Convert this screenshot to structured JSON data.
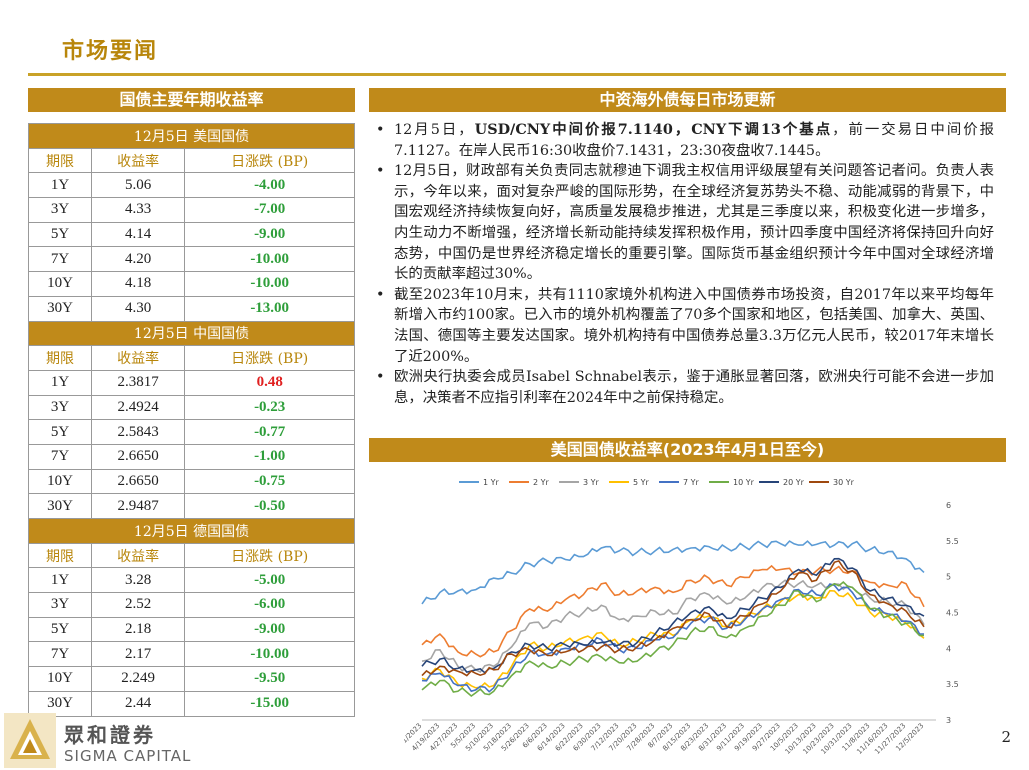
{
  "page": {
    "title": "市场要闻",
    "number": "2"
  },
  "left_section": {
    "title": "国债主要年期收益率",
    "headers": {
      "term": "期限",
      "yield": "收益率",
      "change": "日涨跌 (BP)"
    },
    "groups": [
      {
        "title": "12月5日  美国国债",
        "rows": [
          {
            "term": "1Y",
            "yield": "5.06",
            "change": "-4.00"
          },
          {
            "term": "3Y",
            "yield": "4.33",
            "change": "-7.00"
          },
          {
            "term": "5Y",
            "yield": "4.14",
            "change": "-9.00"
          },
          {
            "term": "7Y",
            "yield": "4.20",
            "change": "-10.00"
          },
          {
            "term": "10Y",
            "yield": "4.18",
            "change": "-10.00"
          },
          {
            "term": "30Y",
            "yield": "4.30",
            "change": "-13.00"
          }
        ]
      },
      {
        "title": "12月5日  中国国债",
        "rows": [
          {
            "term": "1Y",
            "yield": "2.3817",
            "change": "0.48"
          },
          {
            "term": "3Y",
            "yield": "2.4924",
            "change": "-0.23"
          },
          {
            "term": "5Y",
            "yield": "2.5843",
            "change": "-0.77"
          },
          {
            "term": "7Y",
            "yield": "2.6650",
            "change": "-1.00"
          },
          {
            "term": "10Y",
            "yield": "2.6650",
            "change": "-0.75"
          },
          {
            "term": "30Y",
            "yield": "2.9487",
            "change": "-0.50"
          }
        ]
      },
      {
        "title": "12月5日  德国国债",
        "rows": [
          {
            "term": "1Y",
            "yield": "3.28",
            "change": "-5.00"
          },
          {
            "term": "3Y",
            "yield": "2.52",
            "change": "-6.00"
          },
          {
            "term": "5Y",
            "yield": "2.18",
            "change": "-9.00"
          },
          {
            "term": "7Y",
            "yield": "2.17",
            "change": "-10.00"
          },
          {
            "term": "10Y",
            "yield": "2.249",
            "change": "-9.50"
          },
          {
            "term": "30Y",
            "yield": "2.44",
            "change": "-15.00"
          }
        ]
      }
    ]
  },
  "right_section": {
    "title": "中资海外债每日市场更新",
    "news": [
      {
        "pre": "12月5日，",
        "bold": "USD/CNY中间价报7.1140，CNY下调13个基点",
        "post": "，前一交易日中间价报7.1127。在岸人民币16:30收盘价7.1431，23:30夜盘收7.1445。"
      },
      {
        "pre": "12月5日，财政部有关负责同志就穆迪下调我主权信用评级展望有关问题答记者问。负责人表示，今年以来，面对复杂严峻的国际形势，在全球经济复苏势头不稳、动能减弱的背景下，中国宏观经济持续恢复向好，高质量发展稳步推进，尤其是三季度以来，积极变化进一步增多，内生动力不断增强，经济增长新动能持续发挥积极作用，预计四季度中国经济将保持回升向好态势，中国仍是世界经济稳定增长的重要引擎。国际货币基金组织预计今年中国对全球经济增长的贡献率超过30%。",
        "bold": "",
        "post": ""
      },
      {
        "pre": "截至2023年10月末，共有1110家境外机构进入中国债券市场投资，自2017年以来平均每年新增入市约100家。已入市的境外机构覆盖了70多个国家和地区，包括美国、加拿大、英国、法国、德国等主要发达国家。境外机构持有中国债券总量3.3万亿元人民币，较2017年末增长了近200%。",
        "bold": "",
        "post": ""
      },
      {
        "pre": "欧洲央行执委会成员Isabel Schnabel表示，鉴于通胀显著回落，欧洲央行可能不会进一步加息，决策者不应指引利率在2024年中之前保持稳定。",
        "bold": "",
        "post": ""
      }
    ],
    "chart_title": "美国国债收益率(2023年4月1日至今)"
  },
  "logo": {
    "cn": "眾和證券",
    "en": "SIGMA CAPITAL"
  },
  "chart_data": {
    "type": "line",
    "title": "",
    "ylim": [
      3,
      6
    ],
    "yticks": [
      "3",
      "3.5",
      "4",
      "4.5",
      "5",
      "5.5",
      "6"
    ],
    "y_axis_side": "right",
    "grid": false,
    "legend": "top",
    "categories": [
      "4/11/2023",
      "4/19/2023",
      "4/27/2023",
      "5/5/2023",
      "5/10/2023",
      "5/18/2023",
      "5/26/2023",
      "6/6/2023",
      "6/14/2023",
      "6/22/2023",
      "6/30/2023",
      "7/12/2023",
      "7/20/2023",
      "7/28/2023",
      "8/7/2023",
      "8/15/2023",
      "8/23/2023",
      "8/31/2023",
      "9/11/2023",
      "9/19/2023",
      "9/27/2023",
      "10/5/2023",
      "10/13/2023",
      "10/23/2023",
      "10/31/2023",
      "11/8/2023",
      "11/16/2023",
      "11/27/2023",
      "12/5/2023"
    ],
    "series": [
      {
        "name": "1 Yr",
        "color": "#5B9BD5",
        "values": [
          4.62,
          4.78,
          4.8,
          4.82,
          4.98,
          5.05,
          5.18,
          5.22,
          5.24,
          5.28,
          5.4,
          5.36,
          5.34,
          5.36,
          5.38,
          5.4,
          5.42,
          5.4,
          5.42,
          5.45,
          5.46,
          5.44,
          5.45,
          5.44,
          5.46,
          5.38,
          5.35,
          5.25,
          5.06
        ]
      },
      {
        "name": "2 Yr",
        "color": "#ED7D31",
        "values": [
          4.05,
          4.2,
          3.95,
          3.92,
          3.95,
          4.25,
          4.55,
          4.52,
          4.68,
          4.75,
          4.9,
          4.75,
          4.8,
          4.85,
          4.78,
          4.95,
          4.98,
          4.88,
          4.99,
          5.1,
          5.1,
          5.05,
          5.08,
          5.1,
          5.08,
          4.92,
          4.88,
          4.9,
          4.58
        ]
      },
      {
        "name": "3 Yr",
        "color": "#A5A5A5",
        "values": [
          3.82,
          3.98,
          3.75,
          3.7,
          3.75,
          4.02,
          4.35,
          4.3,
          4.45,
          4.5,
          4.6,
          4.4,
          4.45,
          4.52,
          4.48,
          4.7,
          4.75,
          4.62,
          4.7,
          4.85,
          4.9,
          4.9,
          4.88,
          4.9,
          4.85,
          4.7,
          4.65,
          4.6,
          4.33
        ]
      },
      {
        "name": "5 Yr",
        "color": "#FFC000",
        "values": [
          3.58,
          3.7,
          3.5,
          3.45,
          3.48,
          3.75,
          4.05,
          4.0,
          4.1,
          4.15,
          4.22,
          4.05,
          4.1,
          4.2,
          4.18,
          4.4,
          4.45,
          4.3,
          4.42,
          4.55,
          4.65,
          4.75,
          4.7,
          4.8,
          4.7,
          4.5,
          4.45,
          4.35,
          4.14
        ]
      },
      {
        "name": "7 Yr",
        "color": "#4472C4",
        "values": [
          3.55,
          3.65,
          3.48,
          3.42,
          3.45,
          3.7,
          3.95,
          3.92,
          4.0,
          4.05,
          4.12,
          3.98,
          4.0,
          4.12,
          4.15,
          4.35,
          4.42,
          4.28,
          4.4,
          4.55,
          4.68,
          4.82,
          4.75,
          4.88,
          4.78,
          4.55,
          4.48,
          4.38,
          4.2
        ]
      },
      {
        "name": "10 Yr",
        "color": "#70AD47",
        "values": [
          3.42,
          3.55,
          3.4,
          3.38,
          3.4,
          3.62,
          3.82,
          3.75,
          3.8,
          3.85,
          3.88,
          3.8,
          3.82,
          3.95,
          4.05,
          4.22,
          4.3,
          4.15,
          4.28,
          4.45,
          4.6,
          4.8,
          4.65,
          4.9,
          4.85,
          4.55,
          4.45,
          4.35,
          4.18
        ]
      },
      {
        "name": "20 Yr",
        "color": "#264478",
        "values": [
          3.75,
          3.85,
          3.72,
          3.7,
          3.72,
          3.95,
          4.05,
          4.0,
          4.05,
          4.05,
          4.08,
          4.05,
          4.08,
          4.2,
          4.35,
          4.5,
          4.58,
          4.42,
          4.55,
          4.7,
          4.85,
          5.1,
          5.02,
          5.25,
          5.12,
          4.8,
          4.7,
          4.6,
          4.45
        ]
      },
      {
        "name": "30 Yr",
        "color": "#9E480E",
        "values": [
          3.62,
          3.75,
          3.68,
          3.65,
          3.7,
          3.92,
          3.98,
          3.9,
          3.95,
          3.98,
          4.02,
          3.98,
          4.02,
          4.12,
          4.28,
          4.4,
          4.48,
          4.3,
          4.45,
          4.62,
          4.8,
          5.05,
          4.95,
          5.2,
          5.08,
          4.75,
          4.62,
          4.52,
          4.3
        ]
      }
    ]
  }
}
